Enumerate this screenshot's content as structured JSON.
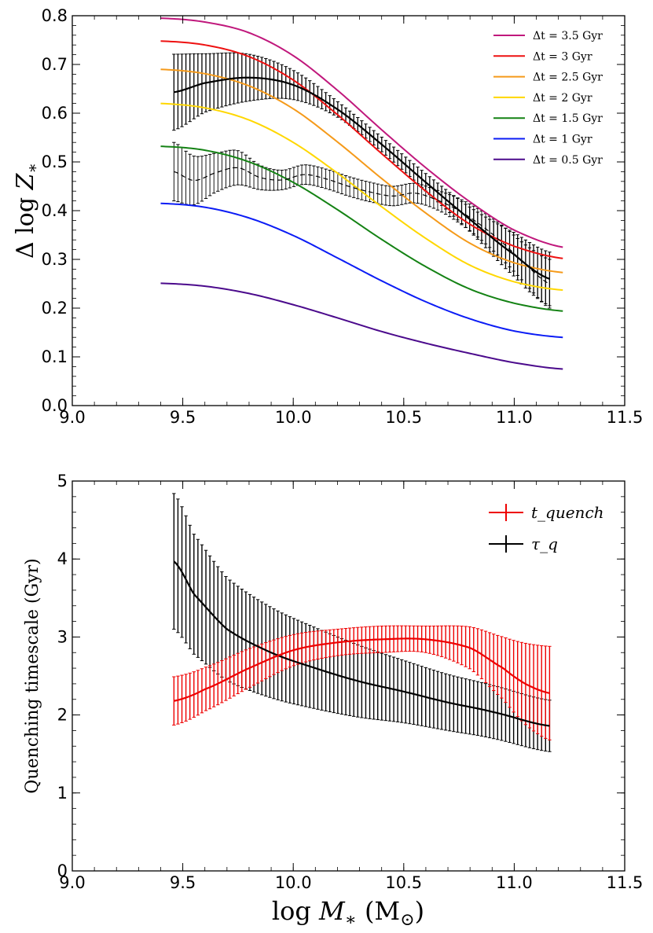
{
  "chart_data": [
    {
      "type": "line",
      "ylabel": "Δ log Z_*",
      "xlim": [
        9.0,
        11.5
      ],
      "ylim": [
        0.0,
        0.8
      ],
      "xticks": [
        "9.0",
        "9.5",
        "10.0",
        "10.5",
        "11.0",
        "11.5"
      ],
      "yticks": [
        "0.0",
        "0.1",
        "0.2",
        "0.3",
        "0.4",
        "0.5",
        "0.6",
        "0.7",
        "0.8"
      ],
      "legend_position": "top-right",
      "x": [
        9.4,
        9.6,
        9.8,
        10.0,
        10.2,
        10.4,
        10.6,
        10.8,
        11.0,
        11.22
      ],
      "series": [
        {
          "name": "Δt = 3.5 Gyr",
          "color": "#c0187c",
          "values": [
            0.795,
            0.787,
            0.765,
            0.718,
            0.647,
            0.566,
            0.488,
            0.418,
            0.36,
            0.325
          ]
        },
        {
          "name": "Δt = 3 Gyr",
          "color": "#ee1111",
          "values": [
            0.748,
            0.74,
            0.716,
            0.668,
            0.597,
            0.517,
            0.44,
            0.372,
            0.327,
            0.302
          ]
        },
        {
          "name": "Δt = 2.5 Gyr",
          "color": "#f59a1a",
          "values": [
            0.69,
            0.681,
            0.656,
            0.609,
            0.541,
            0.466,
            0.395,
            0.333,
            0.293,
            0.273
          ]
        },
        {
          "name": "Δt = 2 Gyr",
          "color": "#ffd700",
          "values": [
            0.62,
            0.611,
            0.586,
            0.54,
            0.477,
            0.408,
            0.343,
            0.288,
            0.254,
            0.237
          ]
        },
        {
          "name": "Δt = 1.5 Gyr",
          "color": "#148214",
          "values": [
            0.532,
            0.524,
            0.5,
            0.458,
            0.402,
            0.341,
            0.285,
            0.239,
            0.21,
            0.194
          ]
        },
        {
          "name": "Δt = 1 Gyr",
          "color": "#0b1cf5",
          "values": [
            0.415,
            0.407,
            0.385,
            0.349,
            0.303,
            0.256,
            0.213,
            0.178,
            0.153,
            0.14
          ]
        },
        {
          "name": "Δt = 0.5 Gyr",
          "color": "#4b0a8c",
          "values": [
            0.251,
            0.245,
            0.23,
            0.207,
            0.18,
            0.152,
            0.128,
            0.107,
            0.088,
            0.075
          ]
        }
      ],
      "observed_solid": {
        "x": [
          9.46,
          9.6,
          9.8,
          10.0,
          10.2,
          10.4,
          10.6,
          10.8,
          11.0,
          11.16
        ],
        "values": [
          0.643,
          0.662,
          0.673,
          0.658,
          0.608,
          0.536,
          0.458,
          0.382,
          0.31,
          0.26
        ],
        "errors": [
          0.078,
          0.06,
          0.048,
          0.03,
          0.016,
          0.015,
          0.018,
          0.025,
          0.045,
          0.055
        ]
      },
      "observed_dashed": {
        "x": [
          9.46,
          9.55,
          9.65,
          9.75,
          9.85,
          9.95,
          10.05,
          10.15,
          10.25,
          10.35,
          10.45,
          10.55,
          10.65,
          10.75,
          10.85,
          10.95,
          11.05,
          11.16
        ],
        "values": [
          0.48,
          0.462,
          0.478,
          0.488,
          0.468,
          0.463,
          0.474,
          0.465,
          0.45,
          0.438,
          0.43,
          0.436,
          0.422,
          0.4,
          0.37,
          0.333,
          0.29,
          0.25
        ],
        "errors": [
          0.06,
          0.05,
          0.04,
          0.035,
          0.025,
          0.02,
          0.02,
          0.02,
          0.02,
          0.02,
          0.02,
          0.02,
          0.02,
          0.025,
          0.03,
          0.035,
          0.04,
          0.05
        ]
      }
    },
    {
      "type": "line",
      "xlabel": "log M_* (M_⊙)",
      "ylabel": "Quenching timescale (Gyr)",
      "xlim": [
        9.0,
        11.5
      ],
      "ylim": [
        0,
        5
      ],
      "xticks": [
        "9.0",
        "9.5",
        "10.0",
        "10.5",
        "11.0",
        "11.5"
      ],
      "yticks": [
        "0",
        "1",
        "2",
        "3",
        "4",
        "5"
      ],
      "legend_position": "top-right",
      "series": [
        {
          "name": "t_quench",
          "color": "#ee0000",
          "x": [
            9.46,
            9.6,
            9.8,
            10.0,
            10.2,
            10.4,
            10.6,
            10.8,
            10.95,
            11.05,
            11.16
          ],
          "values": [
            2.18,
            2.33,
            2.6,
            2.83,
            2.93,
            2.97,
            2.97,
            2.86,
            2.6,
            2.4,
            2.28
          ],
          "errors": [
            0.31,
            0.28,
            0.25,
            0.2,
            0.17,
            0.17,
            0.17,
            0.27,
            0.4,
            0.52,
            0.6
          ]
        },
        {
          "name": "τ_q",
          "color": "#000000",
          "x": [
            9.46,
            9.55,
            9.7,
            9.9,
            10.1,
            10.3,
            10.5,
            10.7,
            10.9,
            11.16
          ],
          "values": [
            3.97,
            3.55,
            3.1,
            2.8,
            2.6,
            2.43,
            2.3,
            2.16,
            2.04,
            1.86
          ],
          "errors": [
            0.87,
            0.77,
            0.66,
            0.58,
            0.52,
            0.46,
            0.4,
            0.36,
            0.34,
            0.33
          ]
        }
      ]
    }
  ]
}
